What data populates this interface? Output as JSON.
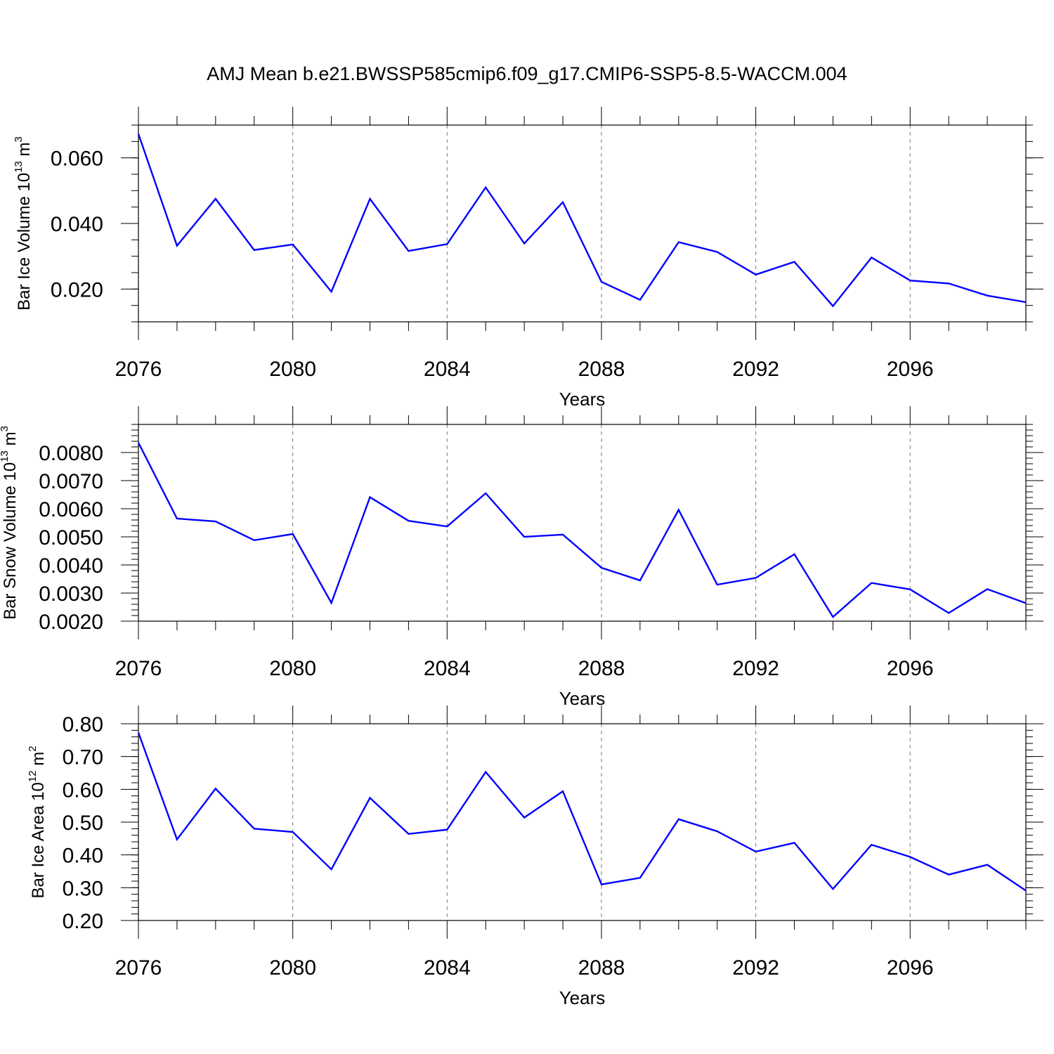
{
  "chart_data": [
    {
      "type": "line",
      "title": "AMJ Mean b.e21.BWSSP585cmip6.f09_g17.CMIP6-SSP5-8.5-WACCM.004",
      "xlabel": "Years",
      "ylabel_main": "Bar Ice Volume 10",
      "ylabel_exp": "13",
      "ylabel_unit": " m",
      "ylabel_unit_exp": "3",
      "xlim": [
        2076,
        2099
      ],
      "ylim": [
        0.01,
        0.07
      ],
      "x_ticks": [
        2076,
        2080,
        2084,
        2088,
        2092,
        2096
      ],
      "x_tick_labels": [
        "2076",
        "2080",
        "2084",
        "2088",
        "2092",
        "2096"
      ],
      "y_ticks": [
        0.02,
        0.04,
        0.06
      ],
      "y_tick_labels": [
        "0.020",
        "0.040",
        "0.060"
      ],
      "y_minor_step": 0.005,
      "grid": "vertical dashed at major x ticks",
      "line_color": "#0000ff",
      "x": [
        2076,
        2077,
        2078,
        2079,
        2080,
        2081,
        2082,
        2083,
        2084,
        2085,
        2086,
        2087,
        2088,
        2089,
        2090,
        2091,
        2092,
        2093,
        2094,
        2095,
        2096,
        2097,
        2098,
        2099
      ],
      "values": [
        0.0673,
        0.0332,
        0.0475,
        0.0319,
        0.0336,
        0.0192,
        0.0475,
        0.0316,
        0.0337,
        0.051,
        0.0339,
        0.0465,
        0.0222,
        0.0167,
        0.0343,
        0.0313,
        0.0244,
        0.0283,
        0.0148,
        0.0296,
        0.0226,
        0.0217,
        0.018,
        0.016
      ]
    },
    {
      "type": "line",
      "title": "",
      "xlabel": "Years",
      "ylabel_main": "Bar Snow Volume 10",
      "ylabel_exp": "13",
      "ylabel_unit": " m",
      "ylabel_unit_exp": "3",
      "xlim": [
        2076,
        2099
      ],
      "ylim": [
        0.002,
        0.009
      ],
      "x_ticks": [
        2076,
        2080,
        2084,
        2088,
        2092,
        2096
      ],
      "x_tick_labels": [
        "2076",
        "2080",
        "2084",
        "2088",
        "2092",
        "2096"
      ],
      "y_ticks": [
        0.002,
        0.003,
        0.004,
        0.005,
        0.006,
        0.007,
        0.008
      ],
      "y_tick_labels": [
        "0.0020",
        "0.0030",
        "0.0040",
        "0.0050",
        "0.0060",
        "0.0070",
        "0.0080"
      ],
      "y_minor_step": 0.0002,
      "grid": "vertical dashed at major x ticks",
      "line_color": "#0000ff",
      "x": [
        2076,
        2077,
        2078,
        2079,
        2080,
        2081,
        2082,
        2083,
        2084,
        2085,
        2086,
        2087,
        2088,
        2089,
        2090,
        2091,
        2092,
        2093,
        2094,
        2095,
        2096,
        2097,
        2098,
        2099
      ],
      "values": [
        0.00835,
        0.00565,
        0.00555,
        0.00488,
        0.0051,
        0.00265,
        0.00641,
        0.00557,
        0.00537,
        0.00655,
        0.005,
        0.00508,
        0.0039,
        0.00345,
        0.00596,
        0.0033,
        0.00354,
        0.00438,
        0.00215,
        0.00336,
        0.00313,
        0.00229,
        0.00314,
        0.00264
      ]
    },
    {
      "type": "line",
      "title": "",
      "xlabel": "Years",
      "ylabel_main": "Bar Ice Area 10",
      "ylabel_exp": "12",
      "ylabel_unit": " m",
      "ylabel_unit_exp": "2",
      "xlim": [
        2076,
        2099
      ],
      "ylim": [
        0.2,
        0.8
      ],
      "x_ticks": [
        2076,
        2080,
        2084,
        2088,
        2092,
        2096
      ],
      "x_tick_labels": [
        "2076",
        "2080",
        "2084",
        "2088",
        "2092",
        "2096"
      ],
      "y_ticks": [
        0.2,
        0.3,
        0.4,
        0.5,
        0.6,
        0.7,
        0.8
      ],
      "y_tick_labels": [
        "0.20",
        "0.30",
        "0.40",
        "0.50",
        "0.60",
        "0.70",
        "0.80"
      ],
      "y_minor_step": 0.02,
      "grid": "vertical dashed at major x ticks",
      "line_color": "#0000ff",
      "x": [
        2076,
        2077,
        2078,
        2079,
        2080,
        2081,
        2082,
        2083,
        2084,
        2085,
        2086,
        2087,
        2088,
        2089,
        2090,
        2091,
        2092,
        2093,
        2094,
        2095,
        2096,
        2097,
        2098,
        2099
      ],
      "values": [
        0.773,
        0.447,
        0.602,
        0.48,
        0.47,
        0.356,
        0.574,
        0.464,
        0.477,
        0.653,
        0.514,
        0.594,
        0.31,
        0.33,
        0.509,
        0.472,
        0.41,
        0.437,
        0.296,
        0.431,
        0.394,
        0.34,
        0.37,
        0.291
      ]
    }
  ]
}
